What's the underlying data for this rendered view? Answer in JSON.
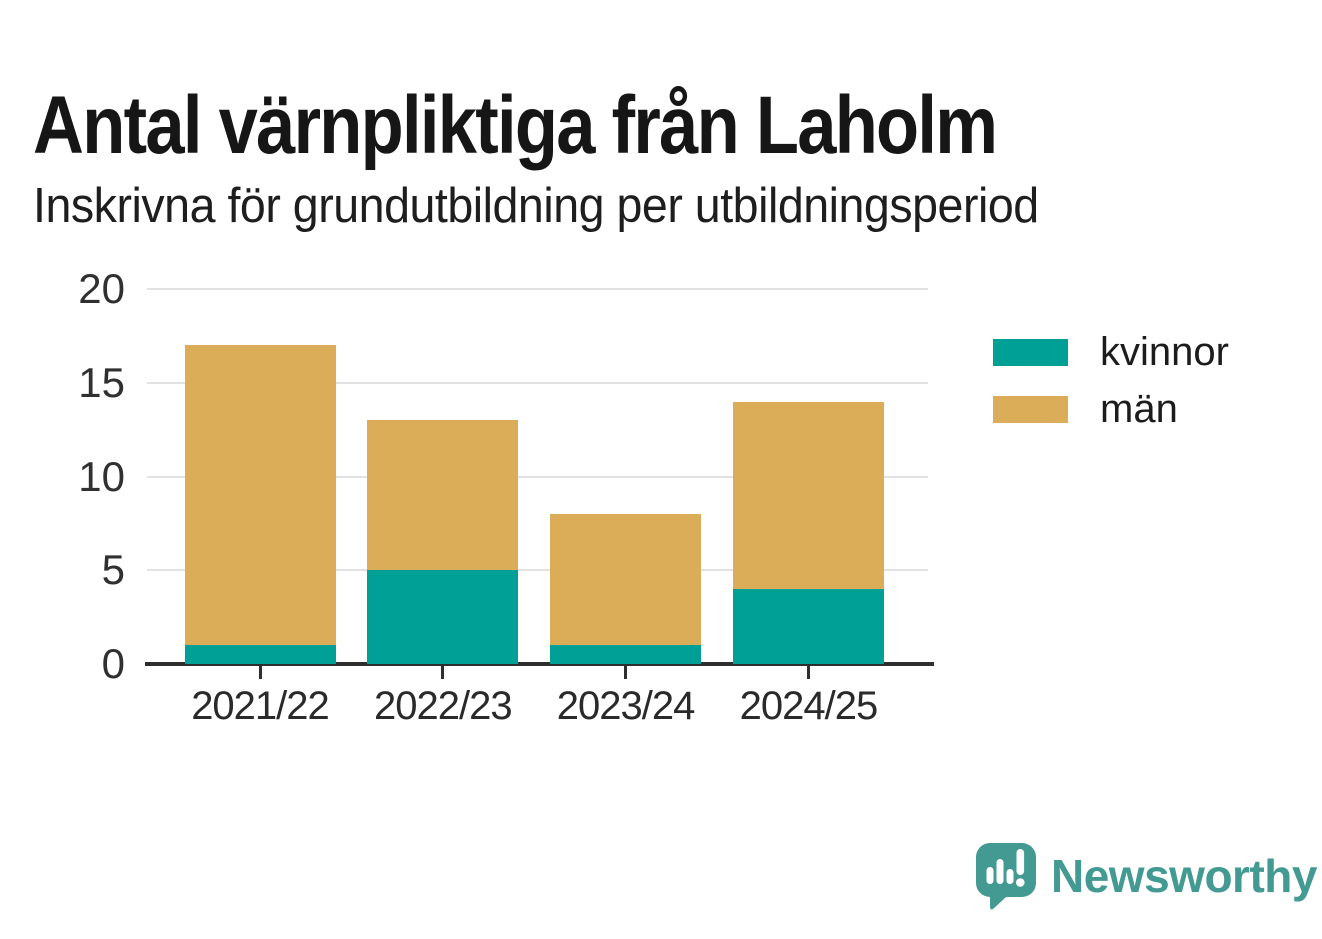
{
  "chart_data": {
    "type": "bar",
    "stacked": true,
    "title": "Antal värnpliktiga från Laholm",
    "subtitle": "Inskrivna för grundutbildning per utbildningsperiod",
    "categories": [
      "2021/22",
      "2022/23",
      "2023/24",
      "2024/25"
    ],
    "series": [
      {
        "name": "kvinnor",
        "color": "#00a096",
        "values": [
          1,
          5,
          1,
          4
        ]
      },
      {
        "name": "män",
        "color": "#dbad58",
        "values": [
          16,
          8,
          7,
          10
        ]
      }
    ],
    "stack_totals": [
      17,
      13,
      8,
      14
    ],
    "ylim": [
      0,
      20
    ],
    "yticks": [
      0,
      5,
      10,
      15,
      20
    ],
    "grid": "horizontal",
    "legend_position": "right"
  },
  "footer": {
    "brand": "Newsworthy",
    "brand_color": "#429a93",
    "logo_icon": "newsworthy-speech-bubble-chart-icon"
  }
}
